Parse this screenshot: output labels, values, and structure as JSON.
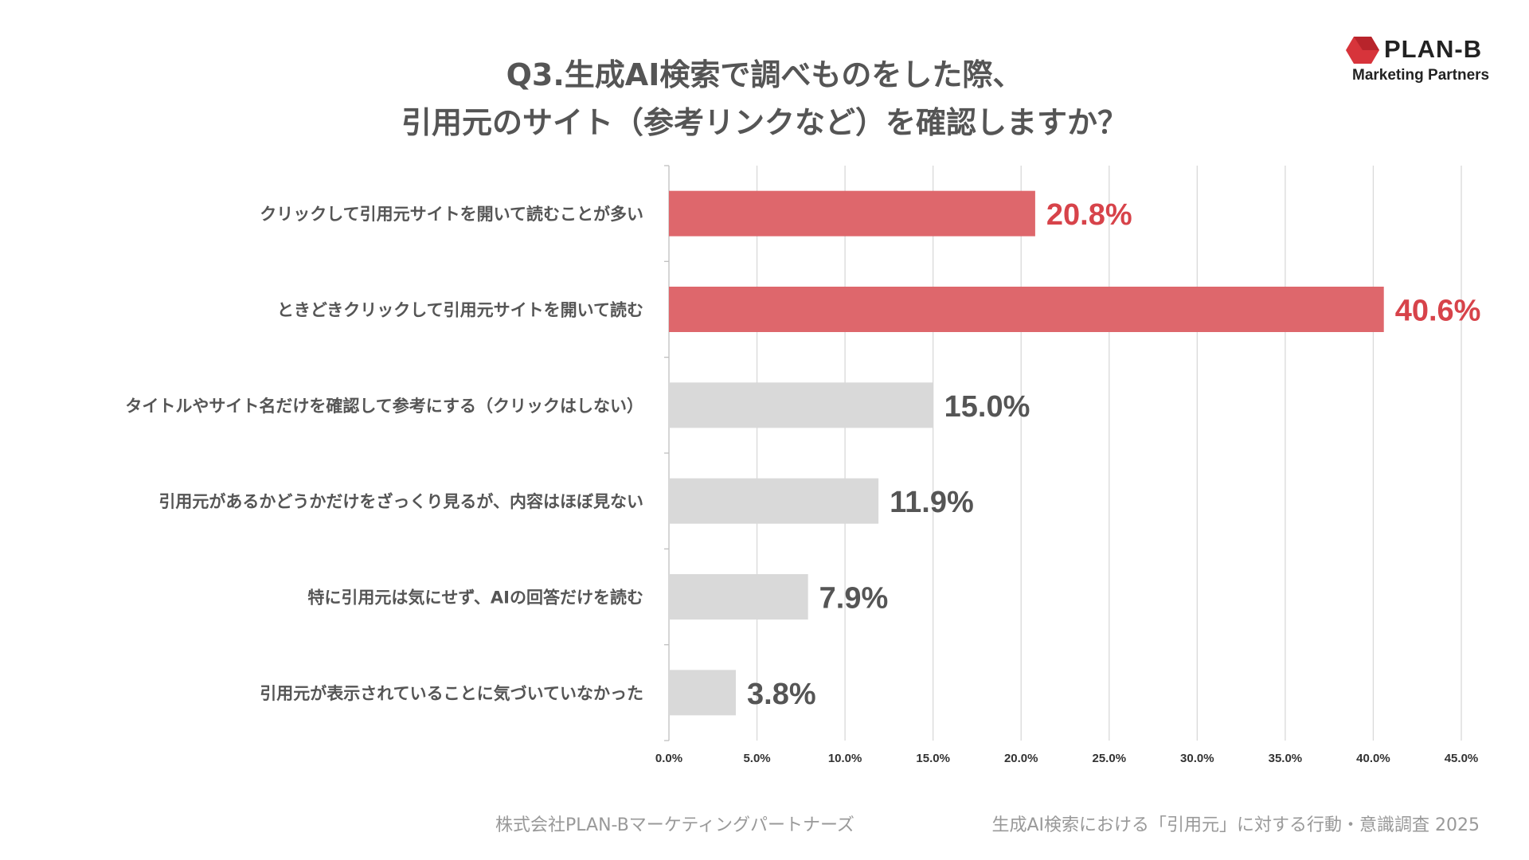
{
  "header": {
    "title_line1": "Q3.生成AI検索で調べものをした際、",
    "title_line2": "引用元のサイト（参考リンクなど）を確認しますか？"
  },
  "logo": {
    "name": "PLAN-B",
    "tagline": "Marketing Partners",
    "color": "#d7343b"
  },
  "chart_data": {
    "type": "bar",
    "orientation": "horizontal",
    "categories": [
      "クリックして引用元サイトを開いて読むことが多い",
      "ときどきクリックして引用元サイトを開いて読む",
      "タイトルやサイト名だけを確認して参考にする（クリックはしない）",
      "引用元があるかどうかだけをざっくり見るが、内容はほぼ見ない",
      "特に引用元は気にせず、AIの回答だけを読む",
      "引用元が表示されていることに気づいていなかった"
    ],
    "values": [
      20.8,
      40.6,
      15.0,
      11.9,
      7.9,
      3.8
    ],
    "value_labels": [
      "20.8%",
      "40.6%",
      "15.0%",
      "11.9%",
      "7.9%",
      "3.8%"
    ],
    "highlight": [
      true,
      true,
      false,
      false,
      false,
      false
    ],
    "xlim": [
      0,
      45
    ],
    "ticks": [
      0,
      5,
      10,
      15,
      20,
      25,
      30,
      35,
      40,
      45
    ],
    "tick_labels": [
      "0.0%",
      "5.0%",
      "10.0%",
      "15.0%",
      "20.0%",
      "25.0%",
      "30.0%",
      "35.0%",
      "40.0%",
      "45.0%"
    ],
    "grid": true,
    "colors": {
      "highlight": "#de676c",
      "normal": "#d9d9d9",
      "highlight_label": "#d7434a",
      "normal_label": "#555555",
      "grid": "#d9d9d9"
    }
  },
  "footer": {
    "company": "株式会社PLAN-Bマーケティングパートナーズ",
    "survey": "生成AI検索における「引用元」に対する行動・意識調査 2025"
  }
}
